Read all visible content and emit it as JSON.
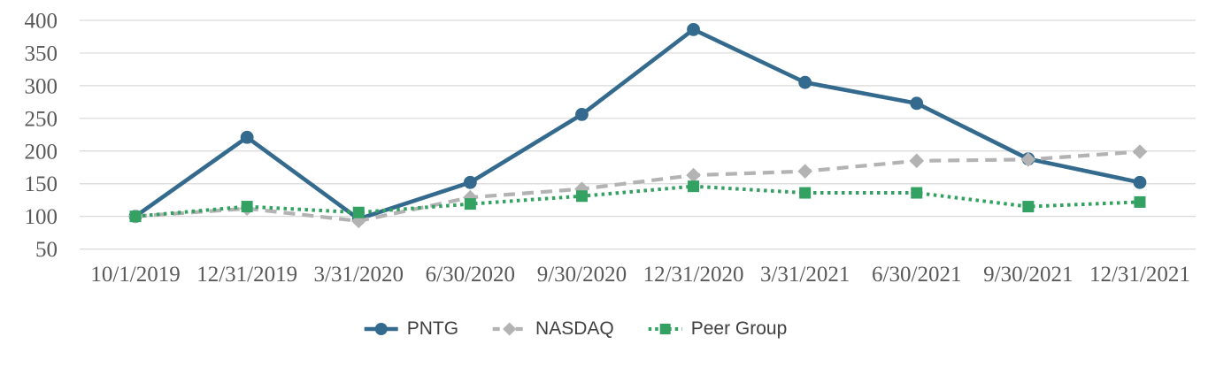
{
  "chart_data": {
    "type": "line",
    "title": "",
    "xlabel": "",
    "ylabel": "",
    "categories": [
      "10/1/2019",
      "12/31/2019",
      "3/31/2020",
      "6/30/2020",
      "9/30/2020",
      "12/31/2020",
      "3/31/2021",
      "6/30/2021",
      "9/30/2021",
      "12/31/2021"
    ],
    "series": [
      {
        "name": "PNTG",
        "marker": "circle",
        "line_style": "solid",
        "color": "#336A8D",
        "values": [
          100,
          221,
          96,
          152,
          256,
          386,
          305,
          273,
          188,
          152
        ]
      },
      {
        "name": "NASDAQ",
        "marker": "diamond",
        "line_style": "dashed",
        "color": "#B3B3B3",
        "values": [
          100,
          112,
          93,
          129,
          142,
          163,
          169,
          185,
          187,
          199
        ]
      },
      {
        "name": "Peer Group",
        "marker": "square",
        "line_style": "dotted",
        "color": "#33A161",
        "values": [
          100,
          115,
          106,
          119,
          131,
          146,
          136,
          136,
          115,
          122
        ]
      }
    ],
    "ylim": [
      0,
      400
    ],
    "yticks": [
      50,
      100,
      150,
      200,
      250,
      300,
      350,
      400
    ],
    "grid": true,
    "legend_position": "bottom",
    "gridline_color": "#D9D9D9",
    "axis_label_color": "#595959",
    "legend_text_color": "#404040"
  }
}
